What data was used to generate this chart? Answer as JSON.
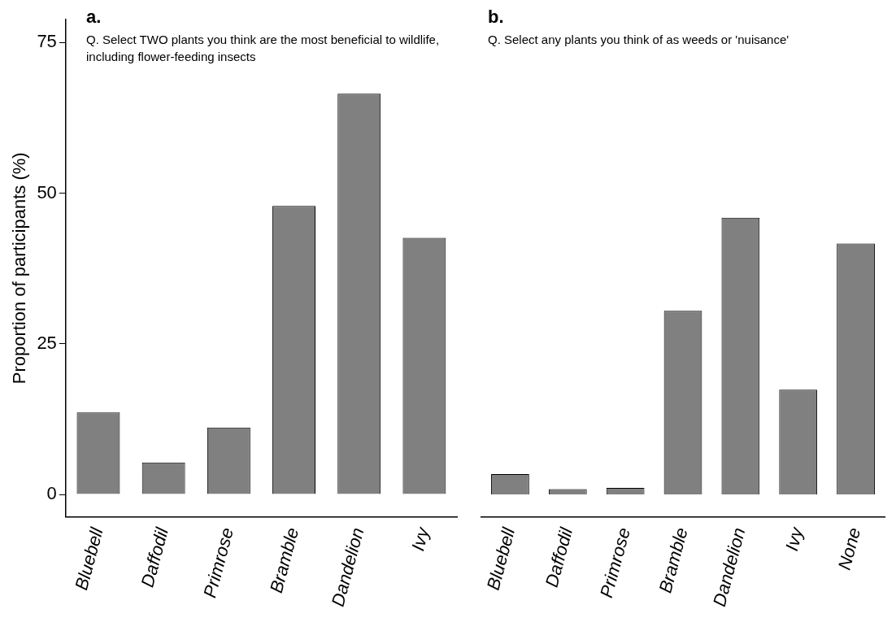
{
  "chart_data": [
    {
      "type": "bar",
      "title": "a.",
      "subtitle": "Q. Select TWO plants you think are the most beneficial to wildlife, including flower-feeding insects",
      "ylabel": "Proportion of participants (%)",
      "categories": [
        "Bluebell",
        "Daffodil",
        "Primrose",
        "Bramble",
        "Dandelion",
        "Ivy"
      ],
      "values": [
        13.6,
        5.3,
        11.1,
        47.9,
        66.5,
        42.6
      ],
      "color": "#808080",
      "ylim": [
        -3.7,
        78.8
      ],
      "yticks": [
        0,
        25,
        50,
        75
      ],
      "grid": false
    },
    {
      "type": "bar",
      "title": "b.",
      "subtitle": "Q. Select any plants you think of as weeds or 'nuisance'",
      "categories": [
        "Bluebell",
        "Daffodil",
        "Primrose",
        "Bramble",
        "Dandelion",
        "Ivy",
        "None"
      ],
      "values": [
        3.4,
        0.9,
        1.1,
        30.5,
        46.0,
        17.4,
        41.7
      ],
      "color": "#808080",
      "ylim": [
        -3.7,
        75
      ],
      "yticks": [
        0,
        25,
        50,
        75
      ],
      "grid": false,
      "tick_labels": "x"
    }
  ]
}
